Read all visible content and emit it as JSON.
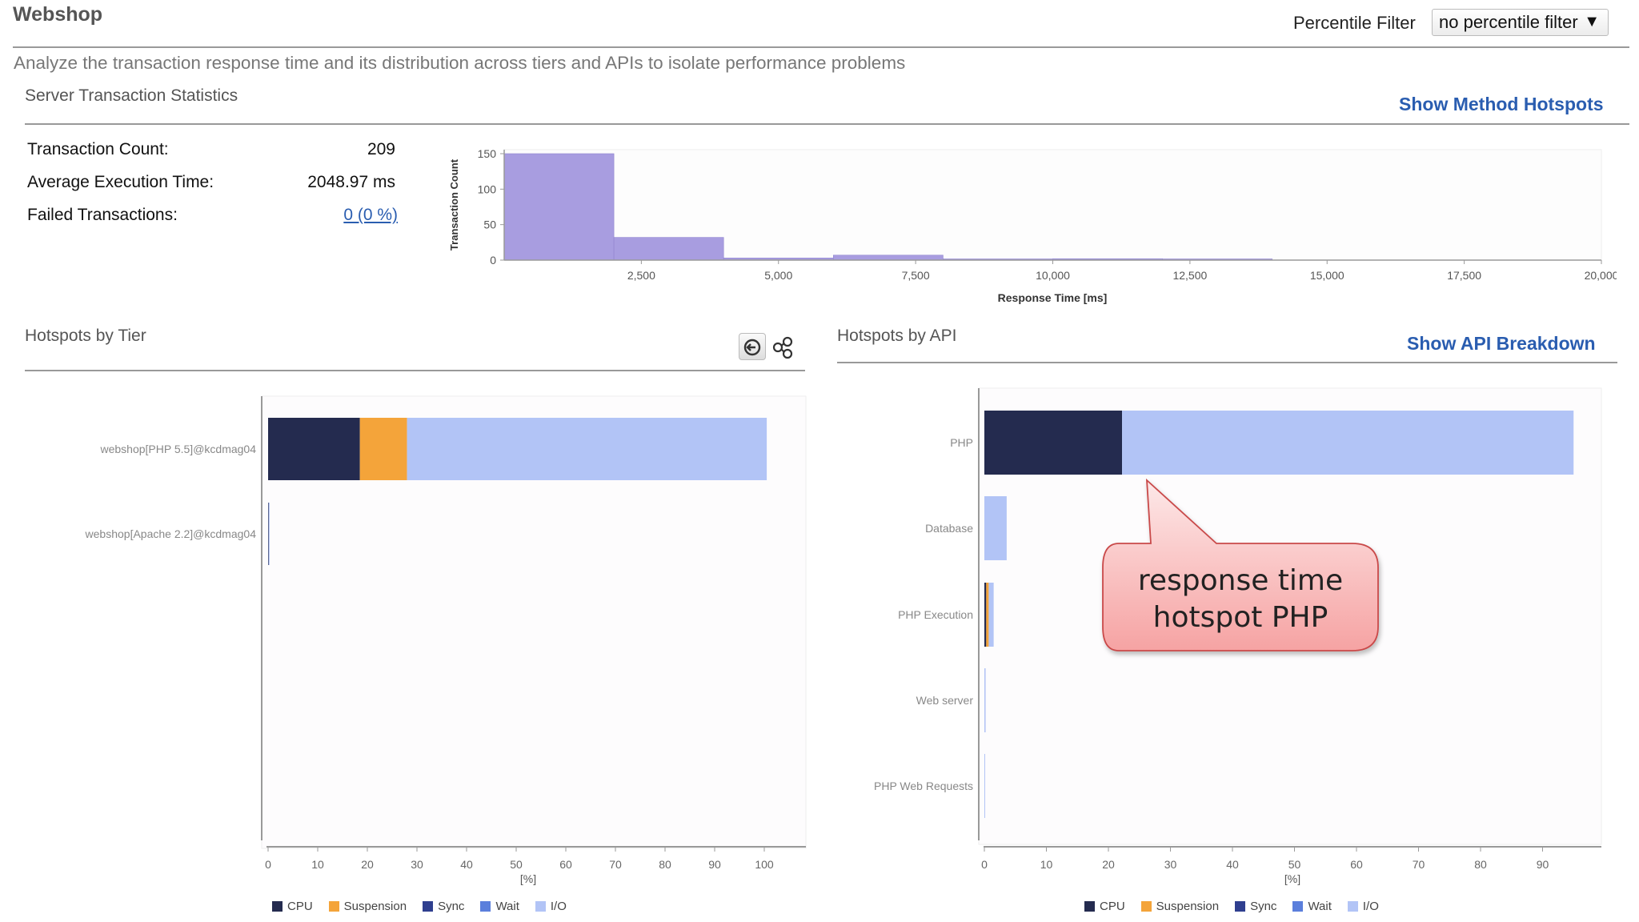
{
  "header": {
    "app_title": "Webshop",
    "percentile_label": "Percentile Filter",
    "percentile_value": "no percentile filter",
    "description": "Analyze the transaction response time and its distribution across tiers and APIs to isolate performance problems"
  },
  "stats": {
    "title": "Server Transaction Statistics",
    "show_method_hotspots": "Show Method Hotspots",
    "rows": [
      {
        "label": "Transaction Count:",
        "value": "209"
      },
      {
        "label": "Average Execution Time:",
        "value": "2048.97 ms"
      },
      {
        "label": "Failed Transactions:",
        "value": "0 (0 %)"
      }
    ]
  },
  "tier_panel": {
    "title": "Hotspots by Tier"
  },
  "api_panel": {
    "title": "Hotspots by API",
    "show_api_breakdown": "Show API Breakdown"
  },
  "callout": {
    "line1": "response time",
    "line2": "hotspot PHP"
  },
  "colors": {
    "CPU": "#242b4f",
    "Suspension": "#f4a43a",
    "Sync": "#2f3f8f",
    "Wait": "#5b7fdc",
    "I/O": "#b2c4f6",
    "histogram": "#a89de0",
    "link": "#2a5db0"
  },
  "chart_data": [
    {
      "type": "bar",
      "title": "",
      "xlabel": "Response Time [ms]",
      "ylabel": "Transaction Count",
      "xlim": [
        0,
        20000
      ],
      "ylim": [
        0,
        150
      ],
      "xticks": [
        "2,500",
        "5,000",
        "7,500",
        "10,000",
        "12,500",
        "15,000",
        "17,500",
        "20,000"
      ],
      "yticks": [
        "0",
        "50",
        "100",
        "150"
      ],
      "bins": [
        {
          "x0": 0,
          "x1": 2000,
          "value": 150
        },
        {
          "x0": 2000,
          "x1": 4000,
          "value": 32
        },
        {
          "x0": 4000,
          "x1": 6000,
          "value": 3
        },
        {
          "x0": 6000,
          "x1": 8000,
          "value": 7
        },
        {
          "x0": 8000,
          "x1": 10000,
          "value": 1
        },
        {
          "x0": 10000,
          "x1": 12000,
          "value": 2
        },
        {
          "x0": 12000,
          "x1": 14000,
          "value": 1
        }
      ]
    },
    {
      "type": "bar",
      "title": "",
      "orientation": "horizontal-stacked",
      "xlabel": "[%]",
      "xlim": [
        0,
        100
      ],
      "xticks": [
        "0",
        "10",
        "20",
        "30",
        "40",
        "50",
        "60",
        "70",
        "80",
        "90",
        "100"
      ],
      "categories": [
        "webshop[PHP 5.5]@kcdmag04",
        "webshop[Apache 2.2]@kcdmag04"
      ],
      "series": [
        {
          "name": "CPU",
          "values": [
            18.5,
            0.1
          ]
        },
        {
          "name": "Suspension",
          "values": [
            9.5,
            0
          ]
        },
        {
          "name": "Sync",
          "values": [
            0,
            0
          ]
        },
        {
          "name": "Wait",
          "values": [
            0,
            0
          ]
        },
        {
          "name": "I/O",
          "values": [
            72.5,
            0.2
          ]
        }
      ]
    },
    {
      "type": "bar",
      "title": "",
      "orientation": "horizontal-stacked",
      "xlabel": "[%]",
      "xlim": [
        0,
        100
      ],
      "xticks": [
        "0",
        "10",
        "20",
        "30",
        "40",
        "50",
        "60",
        "70",
        "80",
        "90"
      ],
      "categories": [
        "PHP",
        "Database",
        "PHP Execution",
        "Web server",
        "PHP Web Requests"
      ],
      "series": [
        {
          "name": "CPU",
          "values": [
            22.2,
            0,
            0.3,
            0,
            0
          ]
        },
        {
          "name": "Suspension",
          "values": [
            0,
            0,
            0.4,
            0,
            0
          ]
        },
        {
          "name": "Sync",
          "values": [
            0,
            0,
            0,
            0,
            0
          ]
        },
        {
          "name": "Wait",
          "values": [
            0,
            0,
            0,
            0,
            0
          ]
        },
        {
          "name": "I/O",
          "values": [
            72.8,
            3.6,
            0.8,
            0.2,
            0.1
          ]
        }
      ]
    }
  ]
}
